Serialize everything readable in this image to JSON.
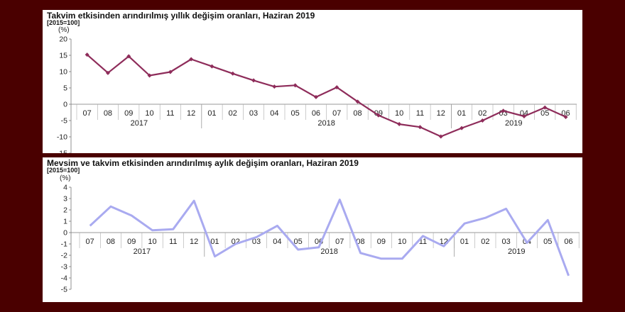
{
  "chart_data": [
    {
      "type": "line",
      "title": "Takvim etkisinden arındırılmış yıllık değişim oranları, Haziran 2019",
      "subtitle": "[2015=100]",
      "ylabel": "(%)",
      "ylim": [
        -15,
        20
      ],
      "yticks": [
        20,
        15,
        10,
        5,
        0,
        -5,
        -10,
        -15
      ],
      "categories": [
        "07",
        "08",
        "09",
        "10",
        "11",
        "12",
        "01",
        "02",
        "03",
        "04",
        "05",
        "06",
        "07",
        "08",
        "09",
        "10",
        "11",
        "12",
        "01",
        "02",
        "03",
        "04",
        "05",
        "06"
      ],
      "year_groups": [
        {
          "label": "2017",
          "count": 6
        },
        {
          "label": "2018",
          "count": 12
        },
        {
          "label": "2019",
          "count": 6
        }
      ],
      "series": [
        {
          "values": [
            15.2,
            9.6,
            14.7,
            8.8,
            9.9,
            13.8,
            11.6,
            9.4,
            7.3,
            5.4,
            5.8,
            2.2,
            5.2,
            0.8,
            -3.4,
            -6.1,
            -7.0,
            -9.9,
            -7.3,
            -5.0,
            -2.0,
            -3.7,
            -1.0,
            -3.9
          ],
          "color": "#8e2c5a"
        }
      ],
      "grid": false,
      "legend": "none"
    },
    {
      "type": "line",
      "title": "Mevsim ve takvim etkisinden arındırılmış aylık değişim oranları, Haziran 2019",
      "subtitle": "[2015=100]",
      "ylabel": "(%)",
      "ylim": [
        -5,
        4
      ],
      "yticks": [
        4,
        3,
        2,
        1,
        0,
        -1,
        -2,
        -3,
        -4,
        -5
      ],
      "categories": [
        "07",
        "08",
        "09",
        "10",
        "11",
        "12",
        "01",
        "02",
        "03",
        "04",
        "05",
        "06",
        "07",
        "08",
        "09",
        "10",
        "11",
        "12",
        "01",
        "02",
        "03",
        "04",
        "05",
        "06"
      ],
      "year_groups": [
        {
          "label": "2017",
          "count": 6
        },
        {
          "label": "2018",
          "count": 12
        },
        {
          "label": "2019",
          "count": 6
        }
      ],
      "series": [
        {
          "values": [
            0.6,
            2.3,
            1.5,
            0.2,
            0.3,
            2.8,
            -2.1,
            -1.0,
            -0.4,
            0.6,
            -1.5,
            -1.3,
            2.9,
            -1.8,
            -2.3,
            -2.3,
            -0.3,
            -1.2,
            0.8,
            1.3,
            2.1,
            -0.9,
            1.1,
            -3.8
          ],
          "color": "#a9aaf0"
        }
      ],
      "grid": false,
      "legend": "none"
    }
  ]
}
